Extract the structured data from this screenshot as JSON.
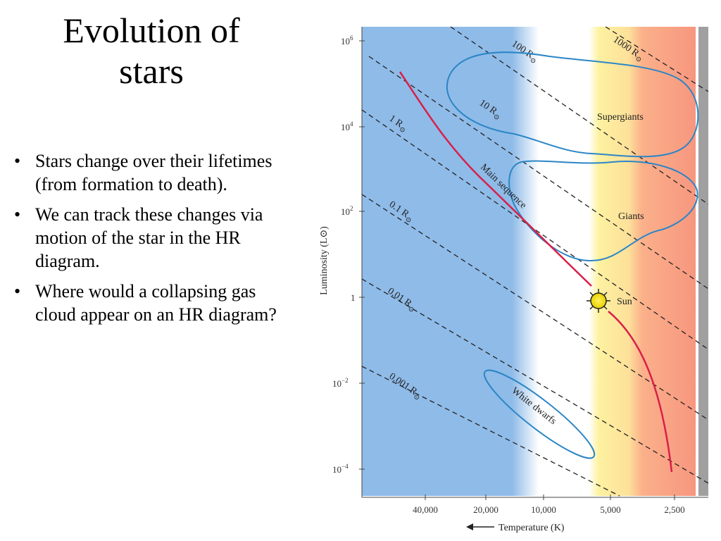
{
  "slide": {
    "title_line1": "Evolution of",
    "title_line2": "stars",
    "bullets": [
      "Stars change over their lifetimes (from formation to death).",
      "We can track these changes via motion of the star in the HR diagram.",
      "Where would a collapsing gas cloud appear on an HR diagram?"
    ]
  },
  "diagram": {
    "y_axis_label": "Luminosity (L⊙)",
    "x_axis_label": "Temperature (K)",
    "x_axis_arrow": "←",
    "y_ticks": [
      {
        "base": "10",
        "exp": "6"
      },
      {
        "base": "10",
        "exp": "4"
      },
      {
        "base": "10",
        "exp": "2"
      },
      {
        "base": "1",
        "exp": ""
      },
      {
        "base": "10",
        "exp": "−2"
      },
      {
        "base": "10",
        "exp": "−4"
      }
    ],
    "x_ticks": [
      "40,000",
      "20,000",
      "10,000",
      "5,000",
      "2,500"
    ],
    "radius_lines": [
      "1000 R",
      "100 R",
      "10 R",
      "1 R",
      "0.1 R",
      "0.01 R",
      "0.001 R"
    ],
    "radius_symbol": "⊙",
    "regions": [
      "Supergiants",
      "Giants",
      "Main sequence",
      "White dwarfs",
      "Sun"
    ],
    "colors": {
      "blue_band": "#8fbbe8",
      "white_band": "#ffffff",
      "yellow_band": "#fdf2a0",
      "orange_band": "#fbb08a",
      "red_band": "#f7967f",
      "gray_edge": "#a0a0a0",
      "region_outline": "#2b86c6",
      "main_sequence": "#d8204a",
      "sun_fill": "#f4e400"
    }
  }
}
